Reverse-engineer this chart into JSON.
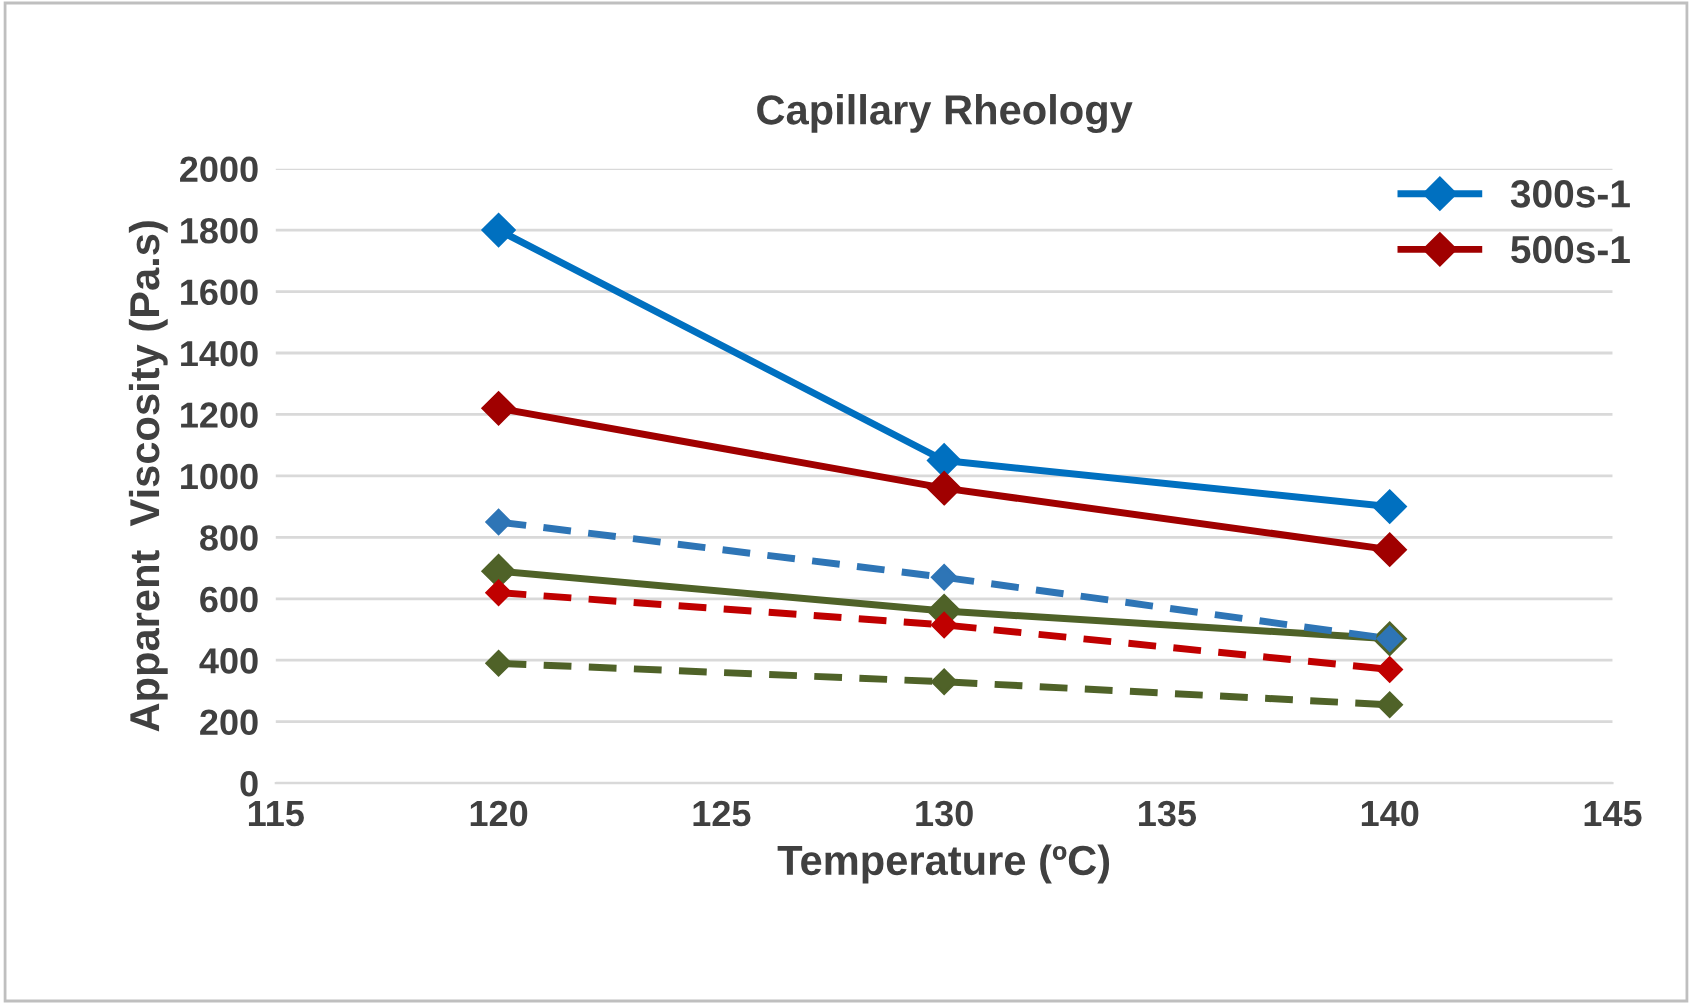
{
  "chart_data": {
    "type": "line",
    "title": "Capillary Rheology",
    "xlabel": "Temperature (ºC)",
    "ylabel": "Apparent  Viscosity (Pa.s)",
    "x": [
      120,
      130,
      140
    ],
    "xlim": [
      115,
      145
    ],
    "xticks": [
      115,
      120,
      125,
      130,
      135,
      140,
      145
    ],
    "ylim": [
      0,
      2000
    ],
    "yticks": [
      0,
      200,
      400,
      600,
      800,
      1000,
      1200,
      1400,
      1600,
      1800,
      2000
    ],
    "grid": "y",
    "legend": "top right",
    "marker": "diamond",
    "series": [
      {
        "name": "300s-1",
        "color": "#0070c0",
        "values": [
          1800,
          1050,
          900
        ],
        "line_style": "solid"
      },
      {
        "name": "500s-1",
        "color": "#a00000",
        "values": [
          1220,
          960,
          760
        ],
        "line_style": "solid"
      },
      {
        "color": "#4f6228",
        "values": [
          690,
          560,
          470
        ],
        "line_style": "solid"
      },
      {
        "color": "#2e75b6",
        "values": [
          850,
          670,
          470
        ],
        "line_style": "dashed"
      },
      {
        "color": "#c00000",
        "values": [
          620,
          515,
          370
        ],
        "line_style": "dashed"
      },
      {
        "color": "#4f6228",
        "values": [
          390,
          330,
          255
        ],
        "line_style": "dashed"
      }
    ]
  }
}
